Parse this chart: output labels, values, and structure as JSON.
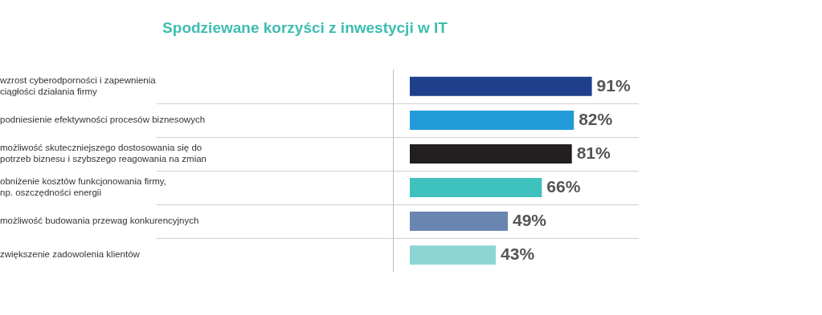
{
  "chart_data": {
    "type": "bar",
    "orientation": "horizontal",
    "title": "Spodziewane korzyści z inwestycji w IT",
    "categories": [
      "wzrost cyberodporności i zapewnienia\nciągłości działania firmy",
      "podniesienie efektywności procesów biznesowych",
      "możliwość skuteczniejszego dostosowania się do\npotrzeb biznesu i szybszego reagowania na zmian",
      "obniżenie kosztów funkcjonowania firmy,\nnp. oszczędności energii",
      "możliwość budowania przewag konkurencyjnych",
      "zwiększenie zadowolenia klientów"
    ],
    "values": [
      91,
      82,
      81,
      66,
      49,
      43
    ],
    "colors": [
      "#1f3f8c",
      "#229bd8",
      "#231f20",
      "#3fc1bd",
      "#6a86b0",
      "#8dd5d5"
    ],
    "value_labels": [
      "91%",
      "82%",
      "81%",
      "66%",
      "49%",
      "43%"
    ],
    "grid": "y",
    "legend": false
  }
}
